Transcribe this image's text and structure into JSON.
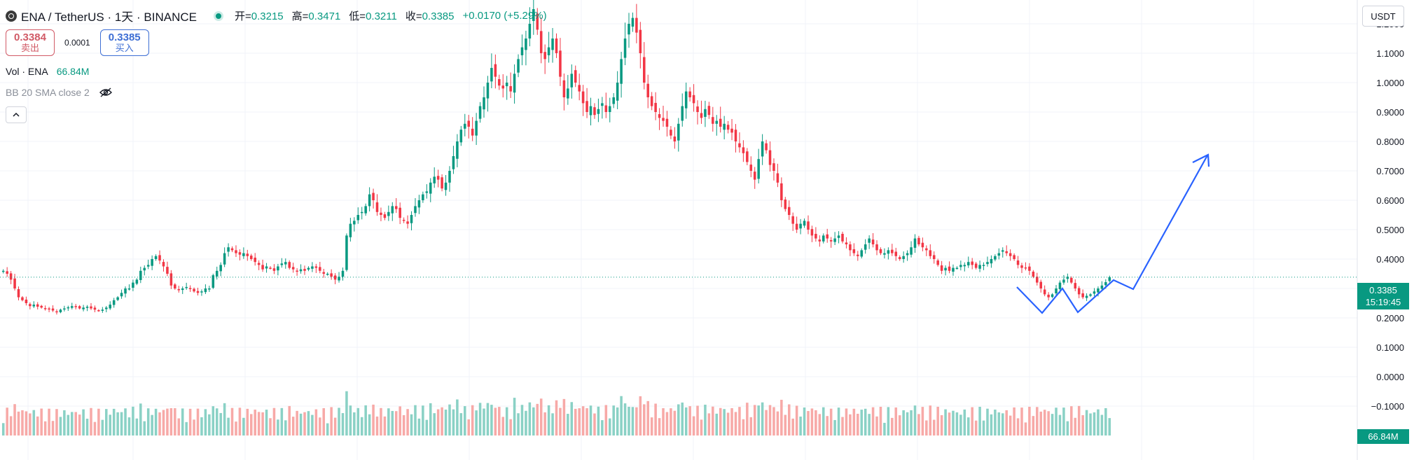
{
  "header": {
    "symbol": "ENA / TetherUS · 1天 · BINANCE",
    "open_label": "开=",
    "open": "0.3215",
    "high_label": "高=",
    "high": "0.3471",
    "low_label": "低=",
    "low": "0.3211",
    "close_label": "收=",
    "close": "0.3385",
    "change": "+0.0170 (+5.29%)"
  },
  "trade": {
    "sell_price": "0.3384",
    "sell_label": "卖出",
    "spread": "0.0001",
    "buy_price": "0.3385",
    "buy_label": "买入"
  },
  "indicators": {
    "vol_name": "Vol · ENA",
    "vol_value": "66.84M",
    "bb_name": "BB 20 SMA close 2"
  },
  "price_axis": {
    "currency": "USDT",
    "current_price": "0.3385",
    "countdown": "15:19:45",
    "volume_tag": "66.84M"
  },
  "colors": {
    "up": "#089981",
    "down": "#f23645",
    "vol_up": "#8ad1c5",
    "vol_down": "#f7a9a7",
    "drawing": "#2962ff"
  },
  "chart_data": {
    "type": "candlestick",
    "title": "ENA / TetherUS · 1天 · BINANCE",
    "ylabel": "USDT",
    "ylim": [
      -0.125,
      1.3
    ],
    "y_ticks": [
      1.2,
      1.1,
      1.0,
      0.9,
      0.8,
      0.7,
      0.6,
      0.5,
      0.4,
      0.3,
      0.2,
      0.1,
      0.0,
      -0.1
    ],
    "y_tick_labels": [
      "1.2000",
      "1.1000",
      "1.0000",
      "0.9000",
      "0.8000",
      "0.7000",
      "0.6000",
      "0.5000",
      "0.4000",
      "0.3000",
      "0.2000",
      "0.1000",
      "0.0000",
      "−0.1000"
    ],
    "last_close": 0.3385,
    "close_series": [
      0.36,
      0.35,
      0.33,
      0.3,
      0.27,
      0.26,
      0.25,
      0.24,
      0.245,
      0.238,
      0.235,
      0.232,
      0.23,
      0.225,
      0.22,
      0.228,
      0.232,
      0.236,
      0.24,
      0.238,
      0.232,
      0.235,
      0.238,
      0.232,
      0.228,
      0.224,
      0.228,
      0.235,
      0.245,
      0.26,
      0.27,
      0.285,
      0.3,
      0.3,
      0.32,
      0.33,
      0.36,
      0.37,
      0.38,
      0.4,
      0.41,
      0.395,
      0.375,
      0.35,
      0.31,
      0.3,
      0.295,
      0.3,
      0.305,
      0.3,
      0.29,
      0.285,
      0.29,
      0.3,
      0.3,
      0.345,
      0.36,
      0.38,
      0.42,
      0.44,
      0.43,
      0.42,
      0.415,
      0.42,
      0.41,
      0.4,
      0.39,
      0.38,
      0.365,
      0.375,
      0.37,
      0.36,
      0.375,
      0.385,
      0.39,
      0.37,
      0.365,
      0.36,
      0.365,
      0.36,
      0.37,
      0.375,
      0.37,
      0.36,
      0.35,
      0.35,
      0.34,
      0.33,
      0.34,
      0.36,
      0.48,
      0.52,
      0.53,
      0.55,
      0.56,
      0.58,
      0.62,
      0.6,
      0.56,
      0.55,
      0.54,
      0.56,
      0.58,
      0.57,
      0.54,
      0.53,
      0.52,
      0.55,
      0.58,
      0.6,
      0.62,
      0.63,
      0.66,
      0.68,
      0.67,
      0.64,
      0.66,
      0.7,
      0.75,
      0.8,
      0.84,
      0.86,
      0.85,
      0.82,
      0.87,
      0.92,
      0.95,
      1.0,
      1.05,
      1.02,
      0.99,
      0.98,
      1.0,
      0.97,
      1.03,
      1.08,
      1.12,
      1.15,
      1.2,
      1.25,
      1.18,
      1.1,
      1.08,
      1.12,
      1.15,
      1.1,
      1.02,
      0.95,
      0.98,
      1.03,
      1.0,
      0.97,
      0.93,
      0.9,
      0.92,
      0.89,
      0.91,
      0.93,
      0.9,
      0.92,
      0.95,
      1.0,
      1.08,
      1.15,
      1.2,
      1.22,
      1.17,
      1.1,
      1.0,
      0.95,
      0.92,
      0.9,
      0.88,
      0.87,
      0.85,
      0.82,
      0.8,
      0.86,
      0.92,
      0.97,
      0.95,
      0.93,
      0.9,
      0.88,
      0.91,
      0.89,
      0.86,
      0.87,
      0.85,
      0.86,
      0.84,
      0.83,
      0.8,
      0.78,
      0.76,
      0.73,
      0.7,
      0.67,
      0.74,
      0.8,
      0.77,
      0.72,
      0.7,
      0.66,
      0.6,
      0.57,
      0.55,
      0.52,
      0.5,
      0.52,
      0.53,
      0.5,
      0.48,
      0.47,
      0.46,
      0.48,
      0.47,
      0.46,
      0.47,
      0.48,
      0.46,
      0.45,
      0.43,
      0.42,
      0.41,
      0.43,
      0.45,
      0.47,
      0.45,
      0.43,
      0.42,
      0.42,
      0.43,
      0.42,
      0.41,
      0.4,
      0.41,
      0.42,
      0.44,
      0.47,
      0.45,
      0.44,
      0.43,
      0.41,
      0.4,
      0.38,
      0.36,
      0.37,
      0.36,
      0.37,
      0.37,
      0.38,
      0.38,
      0.39,
      0.38,
      0.37,
      0.38,
      0.38,
      0.39,
      0.4,
      0.41,
      0.42,
      0.43,
      0.42,
      0.41,
      0.4,
      0.38,
      0.37,
      0.37,
      0.36,
      0.34,
      0.32,
      0.3,
      0.28,
      0.27,
      0.28,
      0.3,
      0.32,
      0.33,
      0.34,
      0.32,
      0.3,
      0.28,
      0.27,
      0.275,
      0.28,
      0.29,
      0.3,
      0.31,
      0.3215,
      0.3385
    ],
    "volume_scale": {
      "baseline": -0.2,
      "max": 0.2
    }
  }
}
